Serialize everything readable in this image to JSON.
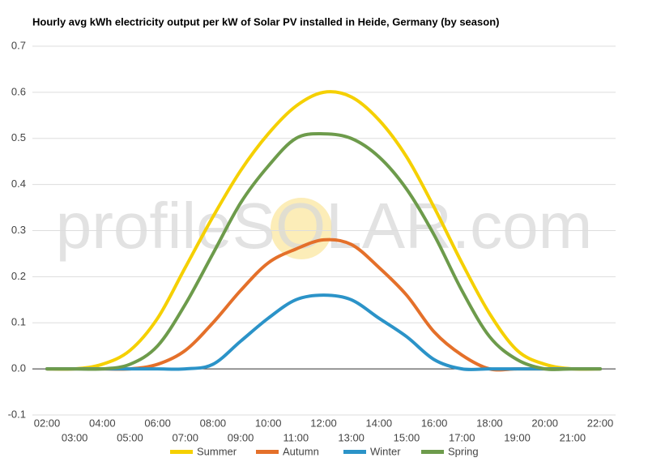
{
  "chart_data": {
    "type": "line",
    "title": "Hourly avg kWh electricity output per kW of Solar PV installed in Heide, Germany (by season)",
    "watermark": "profileSOLAR.com",
    "categories": [
      "02:00",
      "03:00",
      "04:00",
      "05:00",
      "06:00",
      "07:00",
      "08:00",
      "09:00",
      "10:00",
      "11:00",
      "12:00",
      "13:00",
      "14:00",
      "15:00",
      "16:00",
      "17:00",
      "18:00",
      "19:00",
      "20:00",
      "21:00",
      "22:00"
    ],
    "series": [
      {
        "name": "Summer",
        "color": "#f5d000",
        "values": [
          0,
          0,
          0.01,
          0.04,
          0.11,
          0.22,
          0.33,
          0.43,
          0.51,
          0.57,
          0.6,
          0.59,
          0.54,
          0.46,
          0.35,
          0.23,
          0.12,
          0.04,
          0.01,
          0,
          0
        ]
      },
      {
        "name": "Autumn",
        "color": "#e4702a",
        "values": [
          0,
          0,
          0,
          0,
          0.01,
          0.04,
          0.1,
          0.17,
          0.23,
          0.26,
          0.28,
          0.27,
          0.22,
          0.16,
          0.08,
          0.03,
          0,
          0,
          0,
          0,
          0
        ]
      },
      {
        "name": "Winter",
        "color": "#2b93c8",
        "values": [
          0,
          0,
          0,
          0,
          0,
          0,
          0.01,
          0.06,
          0.11,
          0.15,
          0.16,
          0.15,
          0.11,
          0.07,
          0.02,
          0,
          0,
          0,
          0,
          0,
          0
        ]
      },
      {
        "name": "Spring",
        "color": "#6d9b4b",
        "values": [
          0,
          0,
          0,
          0.01,
          0.05,
          0.14,
          0.25,
          0.36,
          0.44,
          0.5,
          0.51,
          0.5,
          0.46,
          0.39,
          0.29,
          0.17,
          0.07,
          0.02,
          0,
          0,
          0
        ]
      }
    ],
    "ylim": [
      -0.1,
      0.7
    ],
    "yticks": [
      -0.1,
      0.0,
      0.1,
      0.2,
      0.3,
      0.4,
      0.5,
      0.6,
      0.7
    ],
    "grid": true,
    "legend": "bottom"
  }
}
